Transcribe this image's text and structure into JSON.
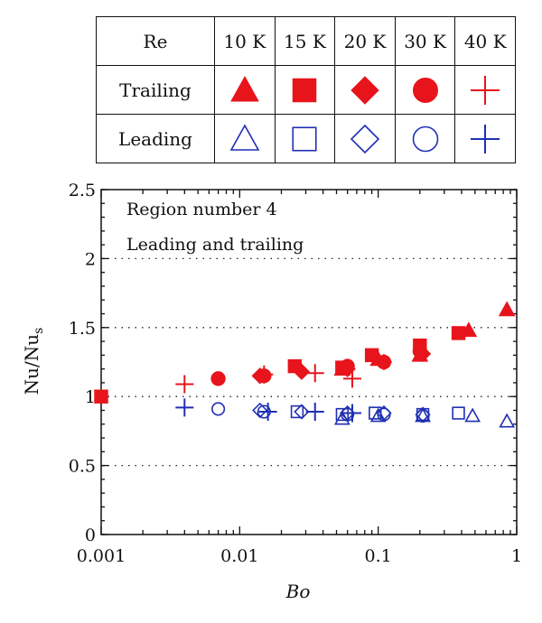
{
  "legend": {
    "header_label": "Re",
    "re_values": [
      "10 K",
      "15 K",
      "20 K",
      "30 K",
      "40 K"
    ],
    "markers": [
      "triangle",
      "square",
      "diamond",
      "circle",
      "plus"
    ],
    "rows": [
      {
        "label": "Trailing",
        "filled": true,
        "color": "#e8141c"
      },
      {
        "label": "Leading",
        "filled": false,
        "color": "#1f2fb4"
      }
    ]
  },
  "chart_data": {
    "type": "scatter",
    "xlabel": "Bo",
    "ylabel_main": "Nu/Nu",
    "ylabel_sub": "s",
    "xscale": "log",
    "xlim": [
      0.001,
      1
    ],
    "ylim": [
      0,
      2.5
    ],
    "x_ticks": [
      0.001,
      0.01,
      0.1,
      1
    ],
    "x_tick_labels": [
      "0.001",
      "0.01",
      "0.1",
      "1"
    ],
    "y_ticks": [
      0,
      0.5,
      1,
      1.5,
      2,
      2.5
    ],
    "y_tick_labels": [
      "0",
      "0.5",
      "1",
      "1.5",
      "2",
      "2.5"
    ],
    "gridlines_y": [
      0.5,
      1,
      1.5,
      2
    ],
    "annotations": [
      "Region number 4",
      "Leading and trailing"
    ],
    "colors": {
      "trailing": "#e8141c",
      "leading": "#1f2fb4"
    },
    "series": [
      {
        "name": "Trailing 10 K",
        "marker": "triangle",
        "filled": true,
        "group": "trailing",
        "points": [
          [
            0.055,
            1.2
          ],
          [
            0.1,
            1.27
          ],
          [
            0.2,
            1.3
          ],
          [
            0.45,
            1.48
          ],
          [
            0.85,
            1.63
          ]
        ]
      },
      {
        "name": "Trailing 15 K",
        "marker": "square",
        "filled": true,
        "group": "trailing",
        "points": [
          [
            0.001,
            1.0
          ],
          [
            0.025,
            1.22
          ],
          [
            0.055,
            1.21
          ],
          [
            0.09,
            1.3
          ],
          [
            0.2,
            1.37
          ],
          [
            0.38,
            1.46
          ]
        ]
      },
      {
        "name": "Trailing 20 K",
        "marker": "diamond",
        "filled": true,
        "group": "trailing",
        "points": [
          [
            0.014,
            1.15
          ],
          [
            0.028,
            1.18
          ],
          [
            0.06,
            1.2
          ],
          [
            0.11,
            1.25
          ],
          [
            0.21,
            1.31
          ]
        ]
      },
      {
        "name": "Trailing 30 K",
        "marker": "circle",
        "filled": true,
        "group": "trailing",
        "points": [
          [
            0.007,
            1.13
          ],
          [
            0.015,
            1.15
          ],
          [
            0.06,
            1.22
          ],
          [
            0.11,
            1.25
          ],
          [
            0.2,
            1.33
          ]
        ]
      },
      {
        "name": "Trailing 40 K",
        "marker": "plus",
        "filled": false,
        "group": "trailing",
        "points": [
          [
            0.004,
            1.09
          ],
          [
            0.015,
            1.16
          ],
          [
            0.035,
            1.17
          ],
          [
            0.065,
            1.13
          ]
        ]
      },
      {
        "name": "Leading 10 K",
        "marker": "triangle",
        "filled": false,
        "group": "leading",
        "points": [
          [
            0.055,
            0.84
          ],
          [
            0.1,
            0.86
          ],
          [
            0.21,
            0.86
          ],
          [
            0.48,
            0.86
          ],
          [
            0.85,
            0.82
          ]
        ]
      },
      {
        "name": "Leading 15 K",
        "marker": "square",
        "filled": false,
        "group": "leading",
        "points": [
          [
            0.026,
            0.89
          ],
          [
            0.055,
            0.87
          ],
          [
            0.095,
            0.88
          ],
          [
            0.21,
            0.87
          ],
          [
            0.38,
            0.88
          ]
        ]
      },
      {
        "name": "Leading 20 K",
        "marker": "diamond",
        "filled": false,
        "group": "leading",
        "points": [
          [
            0.014,
            0.9
          ],
          [
            0.028,
            0.89
          ],
          [
            0.06,
            0.88
          ],
          [
            0.11,
            0.88
          ],
          [
            0.21,
            0.87
          ]
        ]
      },
      {
        "name": "Leading 30 K",
        "marker": "circle",
        "filled": false,
        "group": "leading",
        "points": [
          [
            0.007,
            0.91
          ],
          [
            0.015,
            0.89
          ],
          [
            0.06,
            0.87
          ],
          [
            0.11,
            0.87
          ],
          [
            0.21,
            0.86
          ]
        ]
      },
      {
        "name": "Leading 40 K",
        "marker": "plus",
        "filled": false,
        "group": "leading",
        "points": [
          [
            0.004,
            0.92
          ],
          [
            0.016,
            0.89
          ],
          [
            0.035,
            0.89
          ],
          [
            0.065,
            0.88
          ]
        ]
      }
    ]
  }
}
